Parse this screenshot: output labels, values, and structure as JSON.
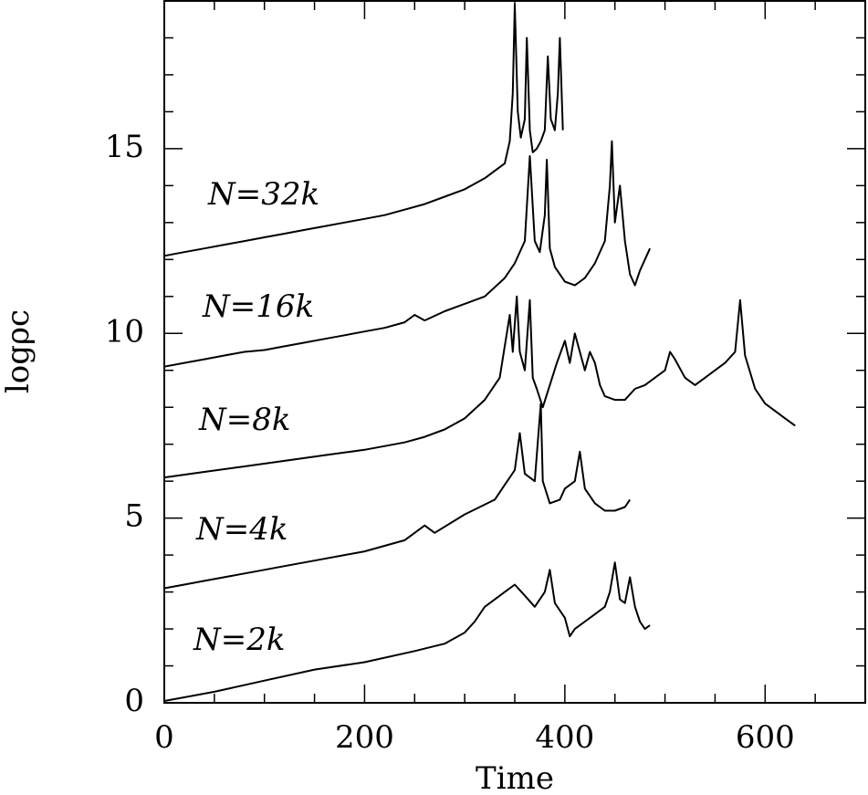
{
  "chart_data": {
    "type": "line",
    "xlabel": "Time",
    "ylabel": "logρc",
    "xlim": [
      0,
      700
    ],
    "ylim": [
      0,
      19
    ],
    "xticks": [
      0,
      200,
      400,
      600
    ],
    "yticks": [
      0,
      5,
      10,
      15
    ],
    "xminor_ticks": [
      50,
      100,
      150,
      250,
      300,
      350,
      450,
      500,
      550,
      650
    ],
    "yminor_ticks": [
      1,
      2,
      3,
      4,
      6,
      7,
      8,
      9,
      11,
      12,
      13,
      14,
      16,
      17,
      18
    ],
    "annotations": [
      "N=32k",
      "N=16k",
      "N=8k",
      "N=4k",
      "N=2k"
    ],
    "series": [
      {
        "name": "N=32k",
        "color": "#000000",
        "x": [
          0,
          20,
          40,
          60,
          80,
          100,
          120,
          140,
          160,
          180,
          200,
          220,
          240,
          260,
          280,
          300,
          320,
          340,
          345,
          348,
          350,
          353,
          356,
          360,
          362,
          365,
          368,
          372,
          376,
          380,
          383,
          386,
          390,
          393,
          395,
          398
        ],
        "values": [
          12.1,
          12.2,
          12.3,
          12.4,
          12.5,
          12.6,
          12.7,
          12.8,
          12.9,
          13.0,
          13.1,
          13.2,
          13.35,
          13.5,
          13.7,
          13.9,
          14.2,
          14.6,
          15.2,
          16.5,
          18.9,
          16.0,
          15.3,
          15.8,
          18.0,
          15.5,
          14.9,
          15.0,
          15.2,
          15.5,
          17.5,
          15.8,
          15.5,
          16.5,
          18.0,
          15.5
        ]
      },
      {
        "name": "N=16k",
        "color": "#000000",
        "x": [
          0,
          20,
          40,
          60,
          80,
          100,
          120,
          140,
          160,
          180,
          200,
          220,
          240,
          250,
          260,
          280,
          300,
          320,
          340,
          350,
          360,
          365,
          370,
          375,
          380,
          382,
          385,
          390,
          400,
          410,
          420,
          430,
          440,
          445,
          447,
          450,
          455,
          460,
          465,
          470,
          475,
          480,
          485
        ],
        "values": [
          9.1,
          9.2,
          9.3,
          9.4,
          9.5,
          9.55,
          9.65,
          9.75,
          9.85,
          9.95,
          10.05,
          10.15,
          10.3,
          10.5,
          10.35,
          10.6,
          10.8,
          11.0,
          11.5,
          11.9,
          12.5,
          14.8,
          12.5,
          12.2,
          13.2,
          14.7,
          12.3,
          11.8,
          11.4,
          11.3,
          11.5,
          11.9,
          12.5,
          14.0,
          15.2,
          13.0,
          14.0,
          12.5,
          11.6,
          11.3,
          11.7,
          12.0,
          12.3
        ]
      },
      {
        "name": "N=8k",
        "color": "#000000",
        "x": [
          0,
          40,
          80,
          120,
          160,
          200,
          240,
          260,
          280,
          300,
          320,
          335,
          345,
          348,
          352,
          355,
          360,
          365,
          368,
          372,
          378,
          385,
          392,
          400,
          405,
          410,
          415,
          420,
          425,
          430,
          435,
          440,
          450,
          460,
          470,
          480,
          490,
          500,
          505,
          510,
          520,
          530,
          540,
          550,
          560,
          570,
          575,
          580,
          590,
          600,
          610,
          620,
          630
        ],
        "values": [
          6.1,
          6.25,
          6.4,
          6.55,
          6.7,
          6.85,
          7.05,
          7.2,
          7.4,
          7.7,
          8.2,
          8.8,
          10.5,
          9.5,
          11.0,
          9.5,
          9.0,
          10.9,
          8.8,
          8.5,
          8.0,
          8.6,
          9.2,
          9.8,
          9.2,
          10.0,
          9.5,
          9.0,
          9.5,
          9.2,
          8.6,
          8.3,
          8.2,
          8.2,
          8.5,
          8.6,
          8.8,
          9.0,
          9.5,
          9.3,
          8.8,
          8.6,
          8.8,
          9.0,
          9.2,
          9.5,
          10.9,
          9.4,
          8.5,
          8.1,
          7.9,
          7.7,
          7.5
        ]
      },
      {
        "name": "N=4k",
        "color": "#000000",
        "x": [
          0,
          20,
          40,
          60,
          80,
          100,
          120,
          140,
          160,
          180,
          200,
          220,
          240,
          250,
          260,
          270,
          300,
          330,
          340,
          350,
          355,
          360,
          370,
          376,
          378,
          385,
          395,
          400,
          410,
          415,
          420,
          430,
          440,
          450,
          460,
          465
        ],
        "values": [
          3.1,
          3.2,
          3.3,
          3.4,
          3.5,
          3.6,
          3.7,
          3.8,
          3.9,
          4.0,
          4.1,
          4.25,
          4.4,
          4.6,
          4.8,
          4.6,
          5.1,
          5.5,
          5.9,
          6.3,
          7.3,
          6.2,
          6.0,
          8.1,
          6.0,
          5.4,
          5.5,
          5.8,
          6.0,
          6.8,
          5.8,
          5.4,
          5.2,
          5.2,
          5.3,
          5.5
        ]
      },
      {
        "name": "N=2k",
        "color": "#000000",
        "x": [
          0,
          50,
          100,
          150,
          200,
          250,
          280,
          300,
          310,
          320,
          330,
          340,
          350,
          360,
          370,
          380,
          385,
          390,
          400,
          405,
          410,
          420,
          430,
          440,
          445,
          450,
          455,
          460,
          465,
          470,
          475,
          480,
          485
        ],
        "values": [
          0.05,
          0.3,
          0.6,
          0.9,
          1.1,
          1.4,
          1.6,
          1.9,
          2.2,
          2.6,
          2.8,
          3.0,
          3.2,
          2.9,
          2.6,
          3.0,
          3.6,
          2.7,
          2.3,
          1.8,
          2.0,
          2.2,
          2.4,
          2.6,
          3.0,
          3.8,
          2.8,
          2.7,
          3.4,
          2.6,
          2.2,
          2.0,
          2.1
        ]
      }
    ]
  }
}
